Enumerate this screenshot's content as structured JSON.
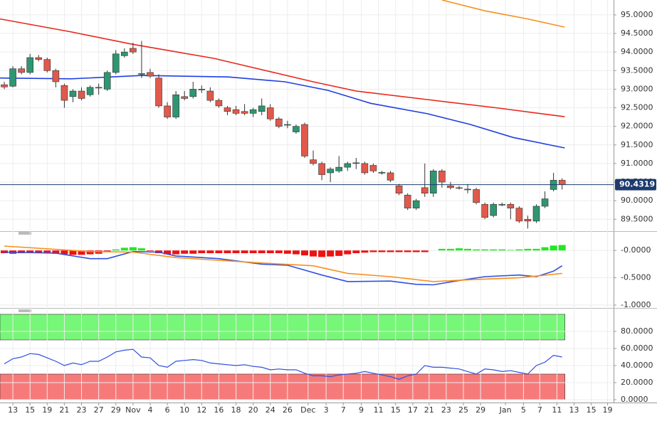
{
  "chart_data": [
    {
      "type": "candlestick",
      "xlim": [
        -0.5,
        71
      ],
      "ylim": [
        89.18,
        95.4
      ],
      "yticks": [
        {
          "value": 89.5,
          "label": "89.5000"
        },
        {
          "value": 90,
          "label": "90.0000"
        },
        {
          "value": 90.5,
          "label": "90.5000"
        },
        {
          "value": 91,
          "label": "91.0000"
        },
        {
          "value": 91.5,
          "label": "91.5000"
        },
        {
          "value": 92,
          "label": "92.0000"
        },
        {
          "value": 92.5,
          "label": "92.5000"
        },
        {
          "value": 93,
          "label": "93.0000"
        },
        {
          "value": 93.5,
          "label": "93.5000"
        },
        {
          "value": 94,
          "label": "94.0000"
        },
        {
          "value": 94.5,
          "label": "94.5000"
        },
        {
          "value": 95,
          "label": "95.0000"
        }
      ],
      "up_color": "#2e9670",
      "down_color": "#e0594b",
      "grid": true,
      "open": [
        93.12,
        93.08,
        93.55,
        93.45,
        93.85,
        93.8,
        93.5,
        93.1,
        92.8,
        92.95,
        92.85,
        93.05,
        93.0,
        93.45,
        93.9,
        94.1,
        93.4,
        93.45,
        93.3,
        92.55,
        92.25,
        92.8,
        92.8,
        93.0,
        92.95,
        92.7,
        92.5,
        92.45,
        92.4,
        92.35,
        92.4,
        92.5,
        92.2,
        92.05,
        91.85,
        92.05,
        91.1,
        91.0,
        90.75,
        90.8,
        90.9,
        91.0,
        91.0,
        90.95,
        90.75,
        90.75,
        90.4,
        90.15,
        89.8,
        90.35,
        90.2,
        90.8,
        90.4,
        90.35,
        90.3,
        90.3,
        89.9,
        89.6,
        89.9,
        89.9,
        89.8,
        89.5,
        89.45,
        89.85,
        90.3,
        90.55
      ],
      "high": [
        93.2,
        93.62,
        93.62,
        93.95,
        93.92,
        93.85,
        93.55,
        93.15,
        93.0,
        93.05,
        93.1,
        93.15,
        93.5,
        94.05,
        94.1,
        94.25,
        94.3,
        93.55,
        93.4,
        92.65,
        92.95,
        92.95,
        93.2,
        93.1,
        93.05,
        92.75,
        92.55,
        92.55,
        92.6,
        92.5,
        92.75,
        92.6,
        92.25,
        92.15,
        92.05,
        92.1,
        91.35,
        91.05,
        90.9,
        91.2,
        91.05,
        91.15,
        91.05,
        91.0,
        90.8,
        90.8,
        90.45,
        90.2,
        90.05,
        91.0,
        90.85,
        90.85,
        90.5,
        90.4,
        90.45,
        90.35,
        89.95,
        89.95,
        89.95,
        89.95,
        89.85,
        89.6,
        89.9,
        90.25,
        90.75,
        90.6
      ],
      "low": [
        93.0,
        93.05,
        93.4,
        93.4,
        93.75,
        93.45,
        93.05,
        92.5,
        92.65,
        92.7,
        92.8,
        92.85,
        92.95,
        93.4,
        93.85,
        93.95,
        93.3,
        93.3,
        92.5,
        92.2,
        92.2,
        92.7,
        92.75,
        92.9,
        92.65,
        92.5,
        92.3,
        92.3,
        92.3,
        92.25,
        92.3,
        92.15,
        91.95,
        91.95,
        91.8,
        91.15,
        90.95,
        90.55,
        90.5,
        90.75,
        90.8,
        90.85,
        90.7,
        90.75,
        90.7,
        90.5,
        90.15,
        89.75,
        89.75,
        90.1,
        90.1,
        90.35,
        90.3,
        90.3,
        90.2,
        89.9,
        89.5,
        89.55,
        89.85,
        89.5,
        89.4,
        89.25,
        89.4,
        89.8,
        90.25,
        90.3
      ],
      "close": [
        93.06,
        93.55,
        93.45,
        93.85,
        93.8,
        93.5,
        93.2,
        92.7,
        92.95,
        92.75,
        93.05,
        93.03,
        93.45,
        93.95,
        94.0,
        94.0,
        93.42,
        93.35,
        92.55,
        92.25,
        92.85,
        92.75,
        93.0,
        93.0,
        92.7,
        92.55,
        92.4,
        92.35,
        92.35,
        92.45,
        92.55,
        92.2,
        92.0,
        92.05,
        92.0,
        91.2,
        91.0,
        90.7,
        90.85,
        90.9,
        91.0,
        91.02,
        90.75,
        90.8,
        90.76,
        90.55,
        90.2,
        89.8,
        90.0,
        90.2,
        90.8,
        90.5,
        90.35,
        90.34,
        90.31,
        89.95,
        89.55,
        89.9,
        89.9,
        89.8,
        89.45,
        89.45,
        89.85,
        90.05,
        90.55,
        90.43
      ],
      "series": [
        {
          "color": "#e8261c",
          "x": [
            -0.5,
            7.8,
            14.9,
            24.4,
            36,
            41,
            49.3,
            57.6,
            65.3
          ],
          "values": [
            94.89,
            94.54,
            94.21,
            93.83,
            93.2,
            92.95,
            92.72,
            92.49,
            92.26
          ]
        },
        {
          "color": "#1f3fe0",
          "x": [
            -0.5,
            7.8,
            16.1,
            26.1,
            32.7,
            37.7,
            42.7,
            49.3,
            54.3,
            59.3,
            65.3
          ],
          "values": [
            93.3,
            93.28,
            93.37,
            93.33,
            93.2,
            92.97,
            92.62,
            92.34,
            92.05,
            91.7,
            91.42
          ]
        },
        {
          "color": "#f7901e",
          "x": [
            51,
            56,
            61,
            65.3
          ],
          "values": [
            95.4,
            95.11,
            94.89,
            94.67
          ]
        }
      ],
      "last_price": 90.4319
    },
    {
      "type": "macd",
      "ylim": [
        -1.04,
        0.25
      ],
      "yticks": [
        {
          "value": 0,
          "label": "-0.0000"
        },
        {
          "value": -0.5,
          "label": "-0.5000"
        },
        {
          "value": -1,
          "label": "-1.0000"
        }
      ],
      "up_color": "#22e822",
      "down_color": "#ee1111",
      "values": [
        -0.05,
        -0.06,
        -0.05,
        -0.04,
        -0.04,
        -0.05,
        -0.06,
        -0.07,
        -0.08,
        -0.08,
        -0.07,
        -0.06,
        -0.03,
        0.02,
        0.05,
        0.06,
        0.04,
        -0.01,
        -0.05,
        -0.07,
        -0.07,
        -0.06,
        -0.06,
        -0.05,
        -0.05,
        -0.05,
        -0.05,
        -0.05,
        -0.05,
        -0.05,
        -0.05,
        -0.05,
        -0.05,
        -0.06,
        -0.07,
        -0.09,
        -0.11,
        -0.12,
        -0.11,
        -0.1,
        -0.07,
        -0.05,
        -0.04,
        -0.03,
        -0.03,
        -0.03,
        -0.03,
        -0.03,
        -0.03,
        -0.03,
        0,
        0.03,
        0.03,
        0.04,
        0.03,
        0.02,
        0.02,
        0.02,
        0.02,
        0.01,
        0.02,
        0.03,
        0.03,
        0.06,
        0.09,
        0.1
      ],
      "series": [
        {
          "color": "#3050e0",
          "x": [
            0,
            6,
            10,
            12,
            15,
            18,
            20,
            25,
            30,
            33,
            37,
            40,
            45,
            48,
            50,
            53,
            56,
            60,
            62,
            64,
            65
          ],
          "values": [
            -0.03,
            -0.05,
            -0.15,
            -0.15,
            -0.02,
            -0.03,
            -0.1,
            -0.15,
            -0.25,
            -0.27,
            -0.45,
            -0.57,
            -0.56,
            -0.62,
            -0.63,
            -0.55,
            -0.48,
            -0.45,
            -0.48,
            -0.38,
            -0.28
          ]
        },
        {
          "color": "#f7901e",
          "x": [
            0,
            10,
            15,
            20,
            30,
            36,
            40,
            45,
            50,
            55,
            60,
            65
          ],
          "values": [
            0.08,
            -0.02,
            -0.03,
            -0.13,
            -0.23,
            -0.28,
            -0.42,
            -0.48,
            -0.57,
            -0.53,
            -0.5,
            -0.42
          ]
        }
      ]
    },
    {
      "type": "rsi",
      "ylim": [
        -2.5,
        105.8
      ],
      "yticks": [
        {
          "value": 0,
          "label": "0.0000"
        },
        {
          "value": 20,
          "label": "20.0000"
        },
        {
          "value": 40,
          "label": "40.0000"
        },
        {
          "value": 60,
          "label": "60.0000"
        },
        {
          "value": 80,
          "label": "80.0000"
        }
      ],
      "bands": [
        {
          "from": 70,
          "to": 100,
          "color": "#77f777"
        },
        {
          "from": 0,
          "to": 30,
          "color": "#f77a7a"
        }
      ],
      "color": "#3050e0",
      "values": [
        42,
        48,
        50,
        54,
        53,
        49,
        45,
        40,
        43,
        41,
        45,
        45,
        50,
        56,
        58,
        59,
        50,
        49,
        40,
        38,
        45,
        46,
        47,
        46,
        43,
        42,
        41,
        40,
        41,
        39,
        38,
        35,
        36,
        35,
        35,
        31,
        28,
        28,
        27,
        29,
        30,
        31,
        33,
        31,
        29,
        27,
        24,
        28,
        30,
        40,
        38,
        38,
        37,
        36,
        33,
        30,
        36,
        35,
        33,
        34,
        32,
        30,
        40,
        44,
        52,
        50
      ],
      "xticks": [
        {
          "value": 1,
          "label": "13"
        },
        {
          "value": 3,
          "label": "15"
        },
        {
          "value": 5,
          "label": "19"
        },
        {
          "value": 7,
          "label": "21"
        },
        {
          "value": 9,
          "label": "23"
        },
        {
          "value": 11,
          "label": "27"
        },
        {
          "value": 13,
          "label": "29"
        },
        {
          "value": 15,
          "label": "Nov"
        },
        {
          "value": 17,
          "label": "4"
        },
        {
          "value": 19,
          "label": "6"
        },
        {
          "value": 21,
          "label": "10"
        },
        {
          "value": 23,
          "label": "12"
        },
        {
          "value": 25,
          "label": "16"
        },
        {
          "value": 27,
          "label": "18"
        },
        {
          "value": 29,
          "label": "20"
        },
        {
          "value": 31,
          "label": "24"
        },
        {
          "value": 33,
          "label": "26"
        },
        {
          "value": 35.4,
          "label": "Dec"
        },
        {
          "value": 37.5,
          "label": "3"
        },
        {
          "value": 39.5,
          "label": "7"
        },
        {
          "value": 41.6,
          "label": "9"
        },
        {
          "value": 43.6,
          "label": "11"
        },
        {
          "value": 45.6,
          "label": "15"
        },
        {
          "value": 47.6,
          "label": "17"
        },
        {
          "value": 49.5,
          "label": "21"
        },
        {
          "value": 51.5,
          "label": "23"
        },
        {
          "value": 53.5,
          "label": "25"
        },
        {
          "value": 55.5,
          "label": "29"
        },
        {
          "value": 58.4,
          "label": "Jan"
        },
        {
          "value": 60.5,
          "label": "5"
        },
        {
          "value": 62.4,
          "label": "7"
        },
        {
          "value": 64.4,
          "label": "11"
        },
        {
          "value": 66.4,
          "label": "13"
        },
        {
          "value": 68.4,
          "label": "15"
        },
        {
          "value": 70.3,
          "label": "19"
        }
      ]
    }
  ]
}
